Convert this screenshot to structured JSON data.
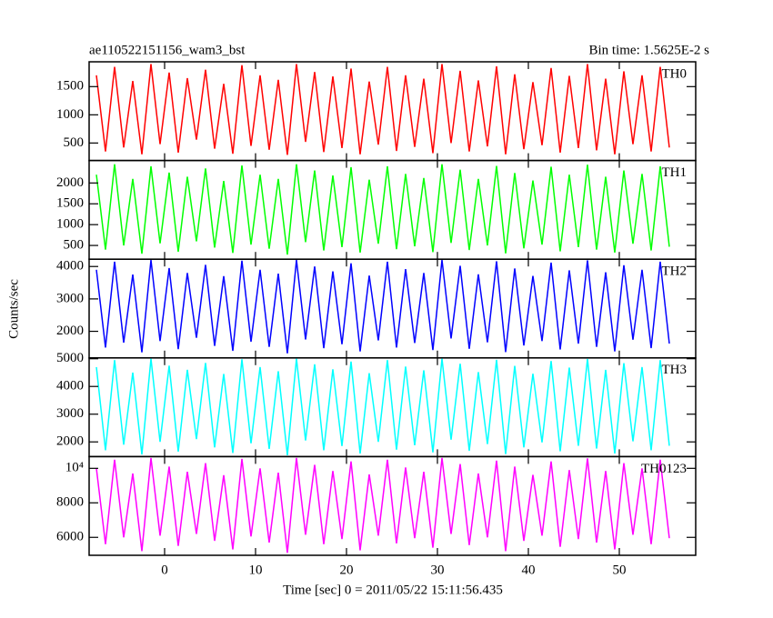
{
  "chart_data": {
    "type": "line",
    "title": "ae110522151156_wam3_bst",
    "subtitle": "Bin time: 1.5625E-2 s",
    "xlabel": "Time [sec] 0 = 2011/05/22 15:11:56.435",
    "ylabel": "Counts/sec",
    "xlim": [
      -8.3,
      58.4
    ],
    "xticks": [
      0,
      10,
      20,
      30,
      40,
      50
    ],
    "x": [
      -7.5,
      -6.5,
      -5.5,
      -4.5,
      -3.5,
      -2.5,
      -1.5,
      -0.5,
      0.5,
      1.5,
      2.5,
      3.5,
      4.5,
      5.5,
      6.5,
      7.5,
      8.5,
      9.5,
      10.5,
      11.5,
      12.5,
      13.5,
      14.5,
      15.5,
      16.5,
      17.5,
      18.5,
      19.5,
      20.5,
      21.5,
      22.5,
      23.5,
      24.5,
      25.5,
      26.5,
      27.5,
      28.5,
      29.5,
      30.5,
      31.5,
      32.5,
      33.5,
      34.5,
      35.5,
      36.5,
      37.5,
      38.5,
      39.5,
      40.5,
      41.5,
      42.5,
      43.5,
      44.5,
      45.5,
      46.5,
      47.5,
      48.5,
      49.5,
      50.5,
      51.5,
      52.5,
      53.5,
      54.5,
      55.5
    ],
    "series": [
      {
        "name": "TH0",
        "color": "#ff0000",
        "ylim": [
          190,
          1940
        ],
        "yticks": [
          500,
          1000,
          1500
        ],
        "values": [
          1700,
          350,
          1850,
          420,
          1600,
          300,
          1900,
          480,
          1750,
          330,
          1650,
          560,
          1800,
          400,
          1550,
          310,
          1880,
          450,
          1700,
          380,
          1620,
          290,
          1900,
          520,
          1760,
          340,
          1680,
          410,
          1820,
          300,
          1590,
          470,
          1850,
          360,
          1700,
          430,
          1640,
          320,
          1900,
          500,
          1780,
          350,
          1610,
          440,
          1860,
          300,
          1720,
          390,
          1580,
          460,
          1830,
          330,
          1690,
          410,
          1900,
          370,
          1640,
          300,
          1770,
          480,
          1700,
          350,
          1850,
          420
        ]
      },
      {
        "name": "TH1",
        "color": "#00ff00",
        "ylim": [
          170,
          2540
        ],
        "yticks": [
          500,
          1000,
          1500,
          2000
        ],
        "values": [
          2200,
          400,
          2450,
          500,
          2100,
          300,
          2400,
          550,
          2250,
          350,
          2150,
          600,
          2350,
          450,
          2050,
          320,
          2420,
          520,
          2200,
          420,
          2100,
          280,
          2450,
          580,
          2300,
          380,
          2180,
          460,
          2380,
          330,
          2080,
          540,
          2400,
          410,
          2220,
          480,
          2120,
          340,
          2450,
          560,
          2320,
          390,
          2100,
          500,
          2410,
          310,
          2240,
          430,
          2060,
          520,
          2390,
          360,
          2200,
          460,
          2440,
          400,
          2150,
          330,
          2300,
          540,
          2220,
          380,
          2400,
          470
        ]
      },
      {
        "name": "TH2",
        "color": "#0000ff",
        "ylim": [
          1180,
          4225
        ],
        "yticks": [
          2000,
          3000,
          4000
        ],
        "values": [
          3900,
          1500,
          4150,
          1650,
          3750,
          1350,
          4200,
          1700,
          3950,
          1450,
          3800,
          1800,
          4050,
          1550,
          3700,
          1400,
          4180,
          1680,
          3900,
          1520,
          3780,
          1320,
          4200,
          1750,
          4000,
          1480,
          3850,
          1600,
          4100,
          1380,
          3720,
          1720,
          4150,
          1500,
          3920,
          1640,
          3800,
          1420,
          4200,
          1780,
          4020,
          1460,
          3760,
          1660,
          4160,
          1360,
          3940,
          1560,
          3710,
          1700,
          4120,
          1440,
          3880,
          1620,
          4190,
          1520,
          3820,
          1380,
          4040,
          1740,
          3900,
          1480,
          4150,
          1620
        ]
      },
      {
        "name": "TH3",
        "color": "#00ffff",
        "ylim": [
          1470,
          5030
        ],
        "yticks": [
          2000,
          3000,
          4000,
          5000
        ],
        "values": [
          4700,
          1700,
          4950,
          1900,
          4500,
          1550,
          5000,
          2000,
          4750,
          1650,
          4600,
          2100,
          4850,
          1800,
          4450,
          1600,
          4980,
          1950,
          4700,
          1750,
          4550,
          1520,
          5000,
          2050,
          4800,
          1700,
          4620,
          1850,
          4900,
          1580,
          4480,
          2000,
          4950,
          1720,
          4720,
          1880,
          4580,
          1620,
          5000,
          2080,
          4820,
          1680,
          4520,
          1920,
          4960,
          1560,
          4740,
          1800,
          4460,
          1980,
          4920,
          1660,
          4680,
          1860,
          4990,
          1760,
          4600,
          1580,
          4840,
          2020,
          4700,
          1700,
          4950,
          1860
        ]
      },
      {
        "name": "TH0123",
        "color": "#ff00ff",
        "ylim": [
          4960,
          10680
        ],
        "yticks": [
          6000,
          8000,
          {
            "value": 10000,
            "label": "10⁴"
          }
        ],
        "values": [
          10000,
          5600,
          10500,
          6000,
          9700,
          5200,
          10600,
          6100,
          10100,
          5500,
          9800,
          6200,
          10300,
          5800,
          9600,
          5300,
          10550,
          6050,
          10000,
          5700,
          9750,
          5100,
          10600,
          6150,
          10200,
          5600,
          9850,
          5900,
          10400,
          5250,
          9650,
          6100,
          10500,
          5650,
          10050,
          5950,
          9800,
          5400,
          10600,
          6200,
          10250,
          5550,
          9700,
          6000,
          10450,
          5200,
          10100,
          5800,
          9620,
          6100,
          10400,
          5450,
          9900,
          5900,
          10580,
          5700,
          9850,
          5300,
          10300,
          6150,
          10000,
          5600,
          10500,
          5950
        ]
      }
    ]
  }
}
